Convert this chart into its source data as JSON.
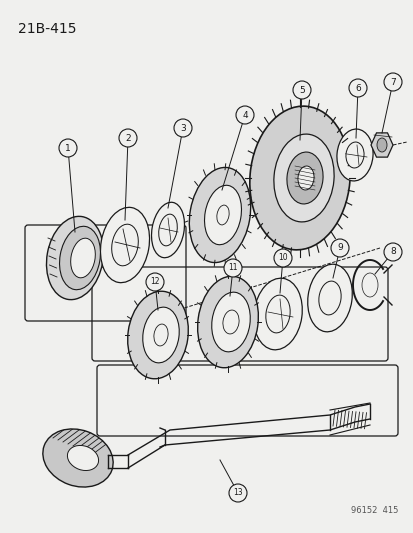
{
  "title": "21B-415",
  "watermark": "96152  415",
  "bg": "#f0f0ee",
  "lc": "#1a1a1a",
  "figw": 4.14,
  "figh": 5.33,
  "dpi": 100
}
